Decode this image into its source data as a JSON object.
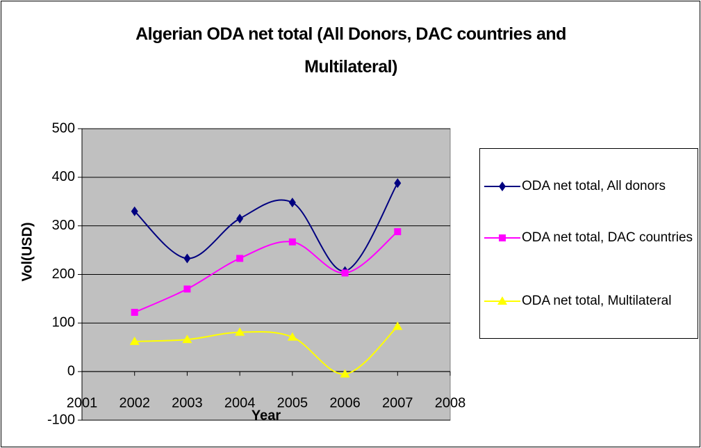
{
  "chart_data": {
    "type": "line",
    "title": "Algerian ODA net total (All Donors, DAC countries and Multilateral)",
    "x_label": "Year",
    "y_label": "Vol(USD)",
    "x": [
      2002,
      2003,
      2004,
      2005,
      2006,
      2007
    ],
    "series": [
      {
        "name": "ODA net total, All donors",
        "color": "#000080",
        "marker": "diamond",
        "values": [
          330,
          233,
          315,
          348,
          207,
          388
        ]
      },
      {
        "name": "ODA net total, DAC countries",
        "color": "#ff00ff",
        "marker": "square",
        "values": [
          122,
          170,
          233,
          267,
          203,
          288
        ]
      },
      {
        "name": "ODA net total, Multilateral",
        "color": "#ffff00",
        "marker": "triangle",
        "values": [
          62,
          66,
          81,
          71,
          -5,
          93
        ]
      }
    ],
    "xlim": [
      2001,
      2008
    ],
    "xticks": [
      2001,
      2002,
      2003,
      2004,
      2005,
      2006,
      2007,
      2008
    ],
    "ylim": [
      -100,
      500
    ],
    "yticks": [
      -100,
      0,
      100,
      200,
      300,
      400,
      500
    ],
    "grid": true,
    "smooth": true,
    "legend": "right",
    "plot_background": "#c0c0c0"
  }
}
